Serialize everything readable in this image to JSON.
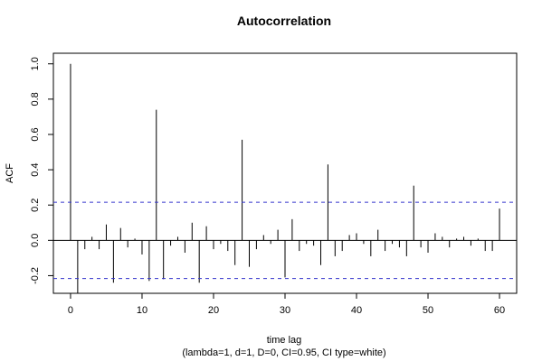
{
  "chart_data": {
    "type": "bar",
    "title": "Autocorrelation",
    "xlabel": "time lag",
    "subtitle": "(lambda=1, d=1, D=0, CI=0.95, CI type=white)",
    "ylabel": "ACF",
    "xlim": [
      -2.4,
      62.4
    ],
    "ylim": [
      -0.3,
      1.06
    ],
    "xticks": [
      0,
      10,
      20,
      30,
      40,
      50,
      60
    ],
    "xtick_labels": [
      "0",
      "10",
      "20",
      "30",
      "40",
      "50",
      "60"
    ],
    "yticks": [
      -0.2,
      0.0,
      0.2,
      0.4,
      0.6,
      0.8,
      1.0
    ],
    "ytick_labels": [
      "-0.2",
      "0.0",
      "0.2",
      "0.4",
      "0.6",
      "0.8",
      "1.0"
    ],
    "confidence_band": [
      -0.216,
      0.216
    ],
    "lags": [
      0,
      1,
      2,
      3,
      4,
      5,
      6,
      7,
      8,
      9,
      10,
      11,
      12,
      13,
      14,
      15,
      16,
      17,
      18,
      19,
      20,
      21,
      22,
      23,
      24,
      25,
      26,
      27,
      28,
      29,
      30,
      31,
      32,
      33,
      34,
      35,
      36,
      37,
      38,
      39,
      40,
      41,
      42,
      43,
      44,
      45,
      46,
      47,
      48,
      49,
      50,
      51,
      52,
      53,
      54,
      55,
      56,
      57,
      58,
      59,
      60
    ],
    "values": [
      1.0,
      -0.3,
      -0.05,
      0.02,
      -0.05,
      0.09,
      -0.24,
      0.07,
      -0.04,
      0.01,
      -0.08,
      -0.23,
      0.74,
      -0.22,
      -0.03,
      0.02,
      -0.07,
      0.1,
      -0.24,
      0.08,
      -0.05,
      -0.02,
      -0.06,
      -0.14,
      0.57,
      -0.15,
      -0.05,
      0.03,
      -0.02,
      0.06,
      -0.21,
      0.12,
      -0.06,
      -0.02,
      -0.03,
      -0.14,
      0.43,
      -0.09,
      -0.06,
      0.03,
      0.04,
      -0.02,
      -0.09,
      0.06,
      -0.06,
      -0.02,
      -0.04,
      -0.09,
      0.31,
      -0.04,
      -0.07,
      0.04,
      0.02,
      -0.04,
      0.01,
      0.02,
      -0.03,
      0.01,
      -0.06,
      -0.06,
      0.18
    ],
    "colors": {
      "bars": "#000000",
      "ci_line": "#3333cc",
      "axis": "#000000"
    }
  }
}
